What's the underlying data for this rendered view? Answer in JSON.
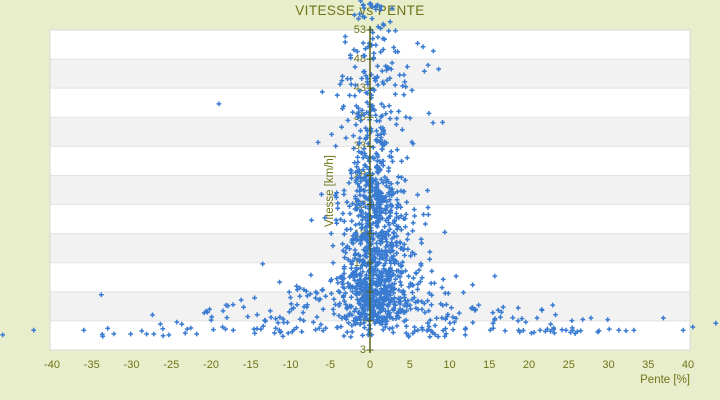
{
  "chart": {
    "title": "VITESSE vs PENTE",
    "x_axis": {
      "title": "Pente [%]",
      "tick_labels": [
        "-40",
        "-35",
        "-30",
        "-25",
        "-20",
        "-15",
        "-10",
        "-5",
        "0",
        "5",
        "10",
        "15",
        "20",
        "25",
        "30",
        "35",
        "40"
      ],
      "tick_values": [
        -40,
        -35,
        -30,
        -25,
        -20,
        -15,
        -10,
        -5,
        0,
        5,
        10,
        15,
        20,
        25,
        30,
        35,
        40
      ]
    },
    "y_axis": {
      "title": "Vitesse [km/h]",
      "tick_labels_top_to_bottom": [
        "53",
        "48",
        "43",
        "38",
        "33",
        "28",
        "23",
        "18",
        "13",
        "8",
        "3"
      ],
      "tick_values_top_to_bottom": [
        53,
        48,
        43,
        38,
        33,
        28,
        23,
        18,
        13,
        8,
        3
      ],
      "bottom_edge_label": "3"
    },
    "colors": {
      "page_background": "#e8eecb",
      "text": "#6e7418",
      "point": "#3a7bd2",
      "axis_line": "#4f5b08",
      "band_light": "#ffffff",
      "band_dark": "#f2f2f2",
      "gridline": "#e3e3e3",
      "plot_border": "#d9d9d9"
    }
  },
  "chart_data": {
    "type": "scatter",
    "title": "VITESSE vs PENTE",
    "xlabel": "Pente [%]",
    "ylabel": "Vitesse [km/h]",
    "xlim": [
      -40,
      40
    ],
    "ylim": [
      -2,
      53
    ],
    "x_tick_step": 5,
    "y_tick_step": 5,
    "grid": "horizontal-bands",
    "legend": "none",
    "marker": "plus",
    "series_name": "Vitesse vs Pente points",
    "description": "Dense cloud of ~1500 blue plus-markers centered on Pente=0, speeds 3-30 km/h most dense, narrowing cone up to ~55 km/h, widening fan toward low speeds, sparse near-zero-speed points across full slope range",
    "point_clusters": [
      {
        "name": "core-dense",
        "n": 520,
        "x_mean": 0.7,
        "x_sigma": 1.7,
        "y_min": 3,
        "y_max": 27,
        "y_pow": 1.05
      },
      {
        "name": "core-spread",
        "n": 330,
        "x_mean": 0.8,
        "x_sigma": 3.0,
        "y_min": 2.5,
        "y_max": 25.5,
        "y_pow": 1.0
      },
      {
        "name": "upper-column",
        "n": 230,
        "x_mean": 0.4,
        "x_sigma": 1.9,
        "y_min": 27,
        "y_max": 53,
        "y_pow": 1.7
      },
      {
        "name": "upper-wide",
        "n": 40,
        "x_mean": 1.5,
        "x_sigma": 4.0,
        "y_min": 33,
        "y_max": 53,
        "y_pow": 1.0
      },
      {
        "name": "low-fan",
        "n": 300,
        "fan": true,
        "x_mean": 0.3,
        "x_base": 2.2,
        "x_grow": 1.15,
        "x_clip": 30,
        "y_min": 0.8,
        "y_max": 11.8,
        "y_pow": 1.15
      },
      {
        "name": "bottom-row",
        "n": 50,
        "bottom": true,
        "x_inner": 13,
        "x_outer": 34,
        "y_min": 0.2,
        "y_max": 1.9
      },
      {
        "name": "top-overflow",
        "n": 26,
        "x_mean": 0.4,
        "x_sigma": 1.1,
        "y_min": 53,
        "y_max": 58,
        "y_pow": 1.0
      }
    ],
    "outlier_points": [
      [
        -46.2,
        0.6
      ],
      [
        -42.3,
        1.4
      ],
      [
        -36.0,
        1.4
      ],
      [
        -33.8,
        7.5
      ],
      [
        -30.1,
        0.75
      ],
      [
        -28.1,
        0.75
      ],
      [
        -27.2,
        0.75
      ],
      [
        -25.3,
        0.6
      ],
      [
        -24.3,
        2.8
      ],
      [
        -23.0,
        1.6
      ],
      [
        -21.8,
        0.75
      ],
      [
        -19.0,
        40.3
      ],
      [
        -17.2,
        1.4
      ],
      [
        -16.2,
        6.6
      ],
      [
        -13.5,
        12.8
      ],
      [
        15.7,
        10.7
      ],
      [
        17.0,
        1.3
      ],
      [
        18.7,
        1.4
      ],
      [
        19.6,
        2.8
      ],
      [
        20.3,
        0.9
      ],
      [
        21.4,
        1.4
      ],
      [
        22.3,
        1.6
      ],
      [
        23.1,
        1.8
      ],
      [
        25.5,
        1.4
      ],
      [
        26.5,
        1.3
      ],
      [
        27.8,
        3.5
      ],
      [
        28.8,
        1.3
      ],
      [
        30.1,
        1.6
      ],
      [
        31.3,
        1.4
      ],
      [
        32.2,
        1.3
      ],
      [
        33.2,
        1.4
      ],
      [
        36.9,
        3.5
      ],
      [
        39.4,
        1.4
      ],
      [
        40.6,
        1.95
      ],
      [
        43.5,
        2.6
      ]
    ],
    "random_seed": 42
  }
}
